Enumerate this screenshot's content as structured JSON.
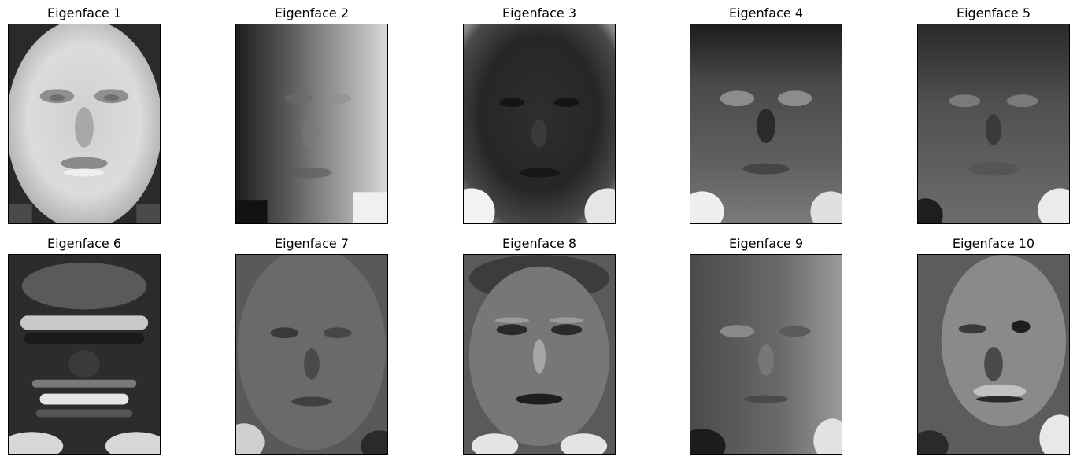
{
  "figure": {
    "grid": {
      "rows": 2,
      "cols": 5
    },
    "colormap": "gray",
    "axes_ticks": false,
    "panels": [
      {
        "title": "Eigenface 1",
        "tone": "bright",
        "image": "eigenface-1"
      },
      {
        "title": "Eigenface 2",
        "tone": "gradient-left-dark",
        "image": "eigenface-2"
      },
      {
        "title": "Eigenface 3",
        "tone": "dark-with-bright-corners",
        "image": "eigenface-3"
      },
      {
        "title": "Eigenface 4",
        "tone": "mid-dark-bright-bottom",
        "image": "eigenface-4"
      },
      {
        "title": "Eigenface 5",
        "tone": "mid-dark-bright-bottom",
        "image": "eigenface-5"
      },
      {
        "title": "Eigenface 6",
        "tone": "dark-horizontal-bands",
        "image": "eigenface-6"
      },
      {
        "title": "Eigenface 7",
        "tone": "mid-gray",
        "image": "eigenface-7"
      },
      {
        "title": "Eigenface 8",
        "tone": "mid-gray-detailed",
        "image": "eigenface-8"
      },
      {
        "title": "Eigenface 9",
        "tone": "mid-gray-light-right",
        "image": "eigenface-9"
      },
      {
        "title": "Eigenface 10",
        "tone": "mid-gray-bright-face",
        "image": "eigenface-10"
      }
    ]
  }
}
